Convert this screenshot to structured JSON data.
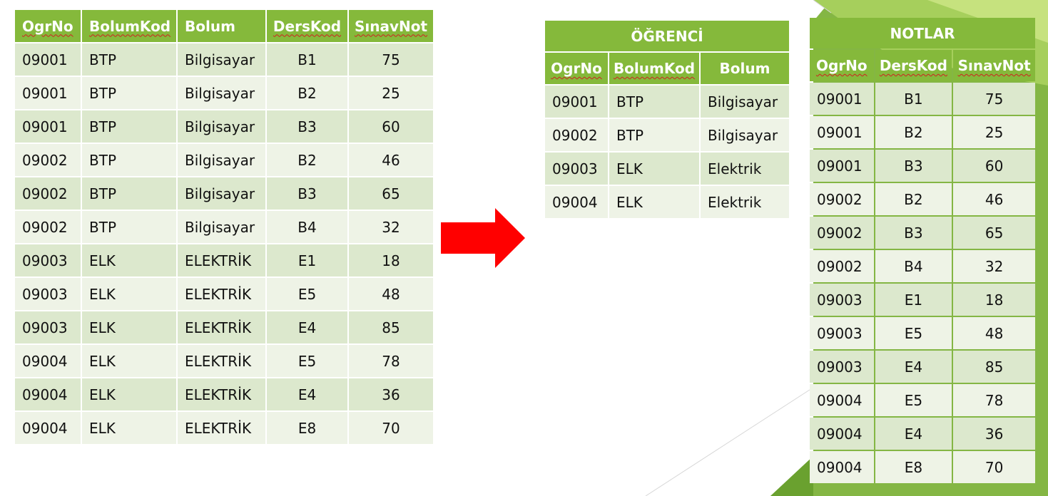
{
  "main_table": {
    "headers": [
      "OgrNo",
      "BolumKod",
      "Bolum",
      "DersKod",
      "SınavNot"
    ],
    "rows": [
      [
        "09001",
        "BTP",
        "Bilgisayar",
        "B1",
        "75"
      ],
      [
        "09001",
        "BTP",
        "Bilgisayar",
        "B2",
        "25"
      ],
      [
        "09001",
        "BTP",
        "Bilgisayar",
        "B3",
        "60"
      ],
      [
        "09002",
        "BTP",
        "Bilgisayar",
        "B2",
        "46"
      ],
      [
        "09002",
        "BTP",
        "Bilgisayar",
        "B3",
        "65"
      ],
      [
        "09002",
        "BTP",
        "Bilgisayar",
        "B4",
        "32"
      ],
      [
        "09003",
        "ELK",
        "ELEKTRİK",
        "E1",
        "18"
      ],
      [
        "09003",
        "ELK",
        "ELEKTRİK",
        "E5",
        "48"
      ],
      [
        "09003",
        "ELK",
        "ELEKTRİK",
        "E4",
        "85"
      ],
      [
        "09004",
        "ELK",
        "ELEKTRİK",
        "E5",
        "78"
      ],
      [
        "09004",
        "ELK",
        "ELEKTRİK",
        "E4",
        "36"
      ],
      [
        "09004",
        "ELK",
        "ELEKTRİK",
        "E8",
        "70"
      ]
    ]
  },
  "ogrenci_table": {
    "title": "ÖĞRENCİ",
    "headers": [
      "OgrNo",
      "BolumKod",
      "Bolum"
    ],
    "rows": [
      [
        "09001",
        "BTP",
        "Bilgisayar"
      ],
      [
        "09002",
        "BTP",
        "Bilgisayar"
      ],
      [
        "09003",
        "ELK",
        "Elektrik"
      ],
      [
        "09004",
        "ELK",
        "Elektrik"
      ]
    ]
  },
  "notlar_table": {
    "title": "NOTLAR",
    "headers": [
      "OgrNo",
      "DersKod",
      "SınavNot"
    ],
    "rows": [
      [
        "09001",
        "B1",
        "75"
      ],
      [
        "09001",
        "B2",
        "25"
      ],
      [
        "09001",
        "B3",
        "60"
      ],
      [
        "09002",
        "B2",
        "46"
      ],
      [
        "09002",
        "B3",
        "65"
      ],
      [
        "09002",
        "B4",
        "32"
      ],
      [
        "09003",
        "E1",
        "18"
      ],
      [
        "09003",
        "E5",
        "48"
      ],
      [
        "09003",
        "E4",
        "85"
      ],
      [
        "09004",
        "E5",
        "78"
      ],
      [
        "09004",
        "E4",
        "36"
      ],
      [
        "09004",
        "E8",
        "70"
      ]
    ]
  },
  "colors": {
    "header_green": "#85b93b",
    "row_dark": "#dce8cd",
    "row_light": "#eef3e6",
    "arrow_red": "#ff0000",
    "accent_green": "#8cc63f"
  }
}
